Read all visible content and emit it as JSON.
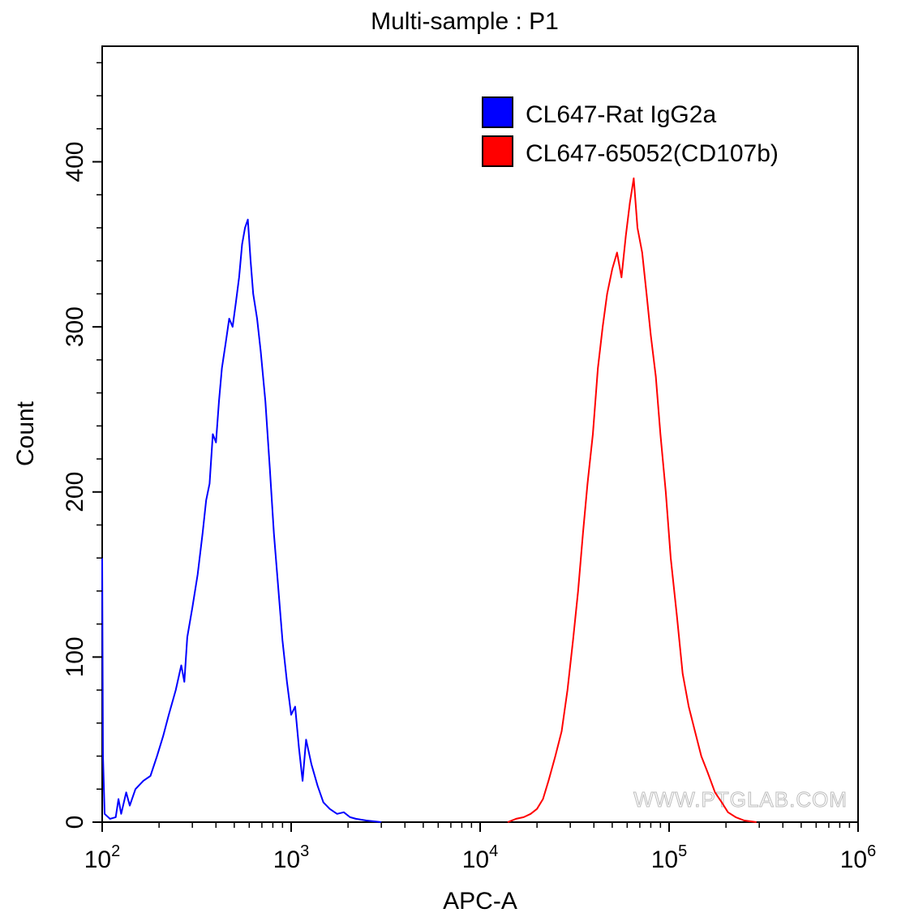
{
  "chart_data": {
    "type": "line",
    "title": "Multi-sample : P1",
    "xlabel": "APC-A",
    "ylabel": "Count",
    "x_scale": "log",
    "xlim": [
      100,
      1000000
    ],
    "ylim": [
      0,
      470
    ],
    "x_ticks": [
      {
        "value": 100,
        "base": "10",
        "exp": "2"
      },
      {
        "value": 1000,
        "base": "10",
        "exp": "3"
      },
      {
        "value": 10000,
        "base": "10",
        "exp": "4"
      },
      {
        "value": 100000,
        "base": "10",
        "exp": "5"
      },
      {
        "value": 1000000,
        "base": "10",
        "exp": "6"
      }
    ],
    "y_ticks": [
      0,
      100,
      200,
      300,
      400
    ],
    "grid": false,
    "legend_position": "top-right",
    "watermark": "WWW.PTGLAB.COM",
    "series": [
      {
        "name": "CL647-Rat IgG2a",
        "color": "#0000ff",
        "points": [
          [
            100,
            160
          ],
          [
            101,
            40
          ],
          [
            103,
            5
          ],
          [
            110,
            2
          ],
          [
            118,
            3
          ],
          [
            122,
            14
          ],
          [
            126,
            5
          ],
          [
            134,
            18
          ],
          [
            140,
            10
          ],
          [
            150,
            20
          ],
          [
            165,
            25
          ],
          [
            180,
            28
          ],
          [
            195,
            40
          ],
          [
            210,
            52
          ],
          [
            225,
            65
          ],
          [
            245,
            80
          ],
          [
            262,
            95
          ],
          [
            272,
            85
          ],
          [
            282,
            112
          ],
          [
            300,
            130
          ],
          [
            320,
            150
          ],
          [
            340,
            175
          ],
          [
            355,
            195
          ],
          [
            370,
            205
          ],
          [
            385,
            235
          ],
          [
            400,
            230
          ],
          [
            415,
            255
          ],
          [
            430,
            275
          ],
          [
            450,
            290
          ],
          [
            470,
            305
          ],
          [
            490,
            300
          ],
          [
            510,
            315
          ],
          [
            530,
            330
          ],
          [
            550,
            350
          ],
          [
            570,
            360
          ],
          [
            590,
            365
          ],
          [
            610,
            340
          ],
          [
            630,
            320
          ],
          [
            660,
            305
          ],
          [
            690,
            285
          ],
          [
            730,
            255
          ],
          [
            770,
            215
          ],
          [
            810,
            175
          ],
          [
            850,
            145
          ],
          [
            900,
            110
          ],
          [
            950,
            85
          ],
          [
            1000,
            65
          ],
          [
            1050,
            70
          ],
          [
            1100,
            45
          ],
          [
            1150,
            25
          ],
          [
            1200,
            50
          ],
          [
            1280,
            35
          ],
          [
            1380,
            22
          ],
          [
            1480,
            12
          ],
          [
            1600,
            8
          ],
          [
            1750,
            5
          ],
          [
            1900,
            6
          ],
          [
            2050,
            3
          ],
          [
            2200,
            2
          ],
          [
            2500,
            1
          ],
          [
            3000,
            0
          ]
        ]
      },
      {
        "name": "CL647-65052(CD107b)",
        "color": "#ff0000",
        "points": [
          [
            14000,
            0
          ],
          [
            15500,
            2
          ],
          [
            17000,
            3
          ],
          [
            18500,
            5
          ],
          [
            20000,
            8
          ],
          [
            21500,
            14
          ],
          [
            23000,
            25
          ],
          [
            25000,
            40
          ],
          [
            27000,
            55
          ],
          [
            29000,
            80
          ],
          [
            31000,
            110
          ],
          [
            33000,
            140
          ],
          [
            35000,
            175
          ],
          [
            37000,
            205
          ],
          [
            39500,
            235
          ],
          [
            42000,
            275
          ],
          [
            44500,
            300
          ],
          [
            47000,
            320
          ],
          [
            50000,
            335
          ],
          [
            53000,
            345
          ],
          [
            56000,
            330
          ],
          [
            59000,
            355
          ],
          [
            62000,
            375
          ],
          [
            65000,
            390
          ],
          [
            68000,
            360
          ],
          [
            72000,
            345
          ],
          [
            76000,
            320
          ],
          [
            80000,
            295
          ],
          [
            85000,
            270
          ],
          [
            90000,
            235
          ],
          [
            96000,
            200
          ],
          [
            102000,
            160
          ],
          [
            110000,
            125
          ],
          [
            118000,
            90
          ],
          [
            127000,
            70
          ],
          [
            137000,
            55
          ],
          [
            148000,
            40
          ],
          [
            160000,
            30
          ],
          [
            175000,
            18
          ],
          [
            190000,
            12
          ],
          [
            205000,
            6
          ],
          [
            225000,
            3
          ],
          [
            250000,
            1
          ],
          [
            290000,
            0
          ]
        ]
      }
    ]
  }
}
